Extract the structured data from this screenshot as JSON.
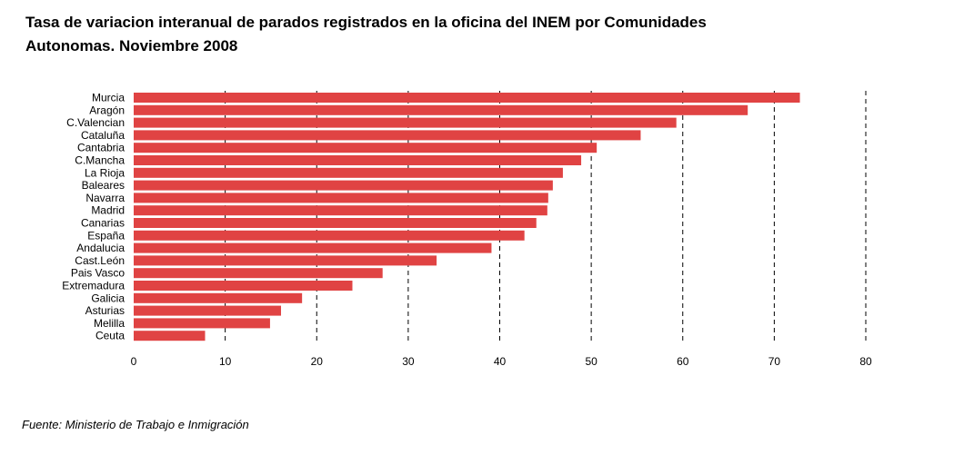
{
  "title": "Tasa de variacion interanual de parados registrados en la oficina del INEM por Comunidades Autonomas. Noviembre 2008",
  "source": "Fuente: Ministerio de Trabajo e Inmigración",
  "colors": {
    "bar": "#e04343",
    "grid": "#000000"
  },
  "chart_data": {
    "type": "bar",
    "orientation": "horizontal",
    "title": "Tasa de variacion interanual de parados registrados en la oficina del INEM por Comunidades Autonomas. Noviembre 2008",
    "xlabel": "",
    "ylabel": "",
    "xlim": [
      0,
      80
    ],
    "xticks": [
      0,
      10,
      20,
      30,
      40,
      50,
      60,
      70,
      80
    ],
    "grid": "vertical dashed",
    "categories": [
      "Murcia",
      "Aragón",
      "C.Valencian",
      "Cataluña",
      "Cantabria",
      "C.Mancha",
      "La Rioja",
      "Baleares",
      "Navarra",
      "Madrid",
      "Canarias",
      "España",
      "Andalucia",
      "Cast.León",
      "Pais Vasco",
      "Extremadura",
      "Galicia",
      "Asturias",
      "Melilla",
      "Ceuta"
    ],
    "values": [
      72.8,
      67.1,
      59.3,
      55.4,
      50.6,
      48.9,
      46.9,
      45.8,
      45.3,
      45.2,
      44.0,
      42.7,
      39.1,
      33.1,
      27.2,
      23.9,
      18.4,
      16.1,
      14.9,
      7.8
    ]
  }
}
